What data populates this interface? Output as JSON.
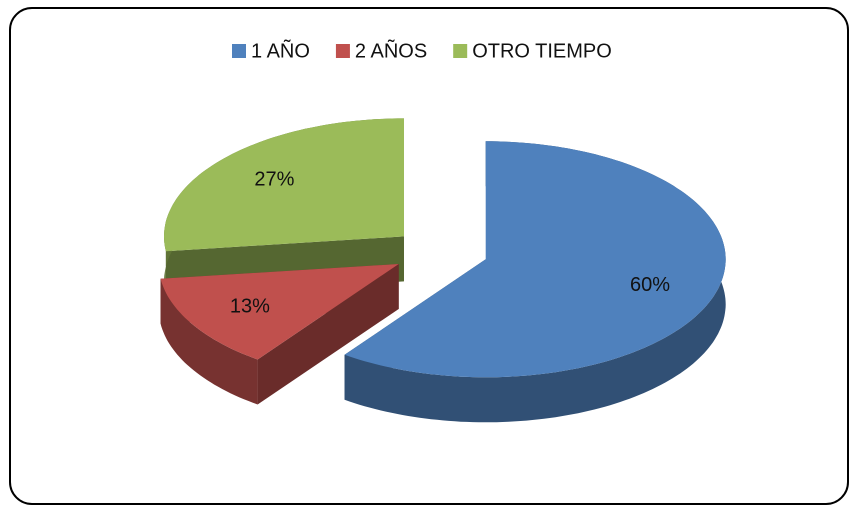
{
  "chart_data": {
    "type": "pie3d",
    "categories": [
      "1  AÑO",
      "2 AÑOS",
      "OTRO TIEMPO"
    ],
    "values": [
      60,
      13,
      27
    ],
    "value_labels": [
      "60%",
      "13%",
      "27%"
    ],
    "colors": [
      "#4f81bd",
      "#c0504d",
      "#9bbb59"
    ],
    "legend": "top"
  }
}
